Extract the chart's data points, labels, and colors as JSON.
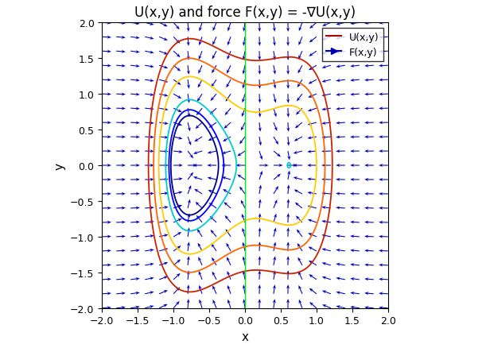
{
  "title": "U(x,y) and force F(x,y) = -∇U(x,y)",
  "xlabel": "x",
  "ylabel": "y",
  "xlim": [
    -2,
    2
  ],
  "ylim": [
    -2,
    2
  ],
  "figsize": [
    6.16,
    4.39
  ],
  "dpi": 100,
  "background_color": "#ffffff",
  "vline_color": "#00ee00",
  "quiver_color": "#0000bb",
  "quiver_n": 21,
  "well_left_x": -0.7,
  "well_right_x": 0.7,
  "a_sq": 0.5,
  "b": 0.5,
  "tilt": 0.3,
  "contour_levels": [
    0.02,
    0.08,
    0.2,
    0.55,
    0.9,
    1.35
  ],
  "contour_colors": [
    "#00008b",
    "#0000ff",
    "#00cccc",
    "#ffcc00",
    "#ff6600",
    "#cc2200"
  ],
  "quiver_scale": 0.13,
  "contour_linewidth": 1.3,
  "legend_contour_inner_color": "#aa0000",
  "legend_contour_outer_color": "#ff8800",
  "legend_arrow_color": "#0000bb",
  "xticks": [
    -2,
    -1.5,
    -1,
    -0.5,
    0,
    0.5,
    1,
    1.5,
    2
  ],
  "yticks": [
    -2,
    -1.5,
    -1,
    -0.5,
    0,
    0.5,
    1,
    1.5,
    2
  ],
  "title_fontsize": 12,
  "label_fontsize": 11
}
